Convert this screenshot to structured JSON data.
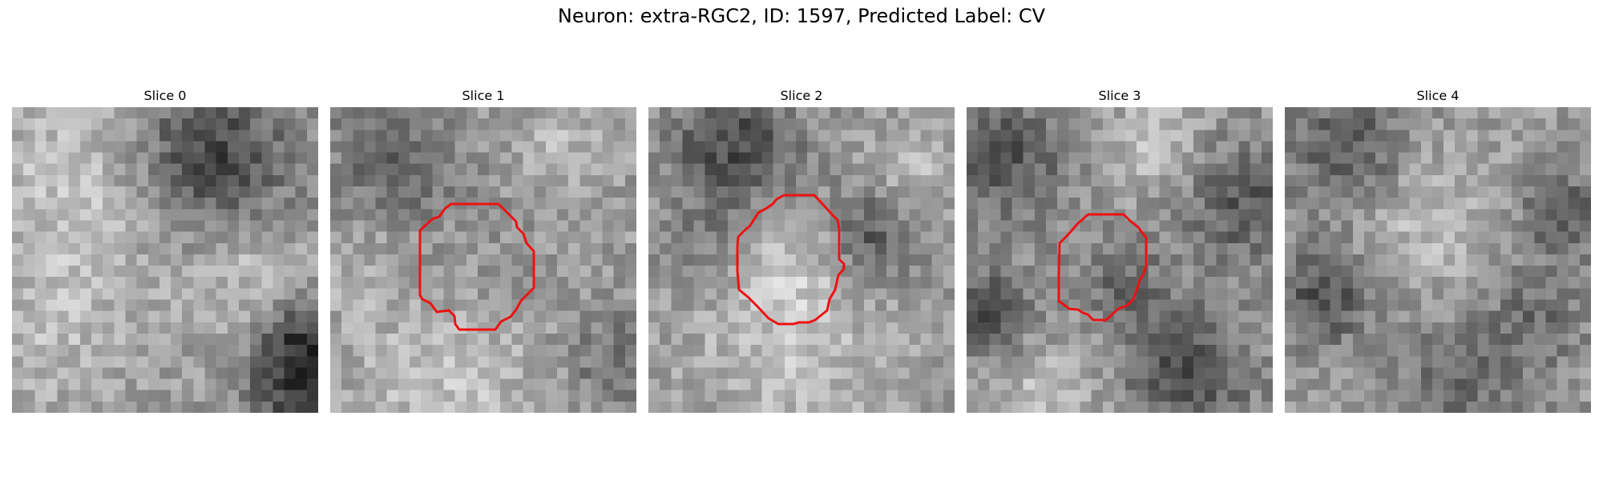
{
  "figure": {
    "title": "Neuron: extra-RGC2, ID: 1597, Predicted Label: CV"
  },
  "panels": [
    {
      "title": "Slice 0",
      "has_contour": false
    },
    {
      "title": "Slice 1",
      "has_contour": true
    },
    {
      "title": "Slice 2",
      "has_contour": true
    },
    {
      "title": "Slice 3",
      "has_contour": true
    },
    {
      "title": "Slice 4",
      "has_contour": false
    }
  ],
  "colors": {
    "contour": "#ee1111",
    "background": "#ffffff"
  }
}
